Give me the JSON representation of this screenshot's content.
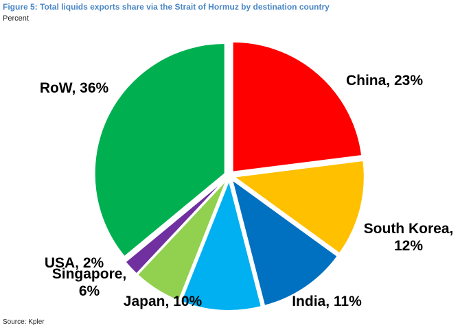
{
  "title": "Figure 5: Total liquids exports share via the Strait of Hormuz by destination country",
  "subtitle": "Percent",
  "source": "Source: Kpler",
  "chart_data": {
    "type": "pie",
    "start_angle_deg": 0,
    "direction": "clockwise",
    "slices": [
      {
        "label": "China",
        "value": 23,
        "display": [
          "China, 23%"
        ],
        "color": "#FF0000"
      },
      {
        "label": "South Korea",
        "value": 12,
        "display": [
          "South Korea,",
          "12%"
        ],
        "color": "#FFC000"
      },
      {
        "label": "India",
        "value": 11,
        "display": [
          "India, 11%"
        ],
        "color": "#0070C0"
      },
      {
        "label": "Japan",
        "value": 10,
        "display": [
          "Japan, 10%"
        ],
        "color": "#00B0F0"
      },
      {
        "label": "Singapore",
        "value": 6,
        "display": [
          "Singapore,",
          "6%"
        ],
        "color": "#92D050"
      },
      {
        "label": "USA",
        "value": 2,
        "display": [
          "USA, 2%"
        ],
        "color": "#7030A0"
      },
      {
        "label": "RoW",
        "value": 36,
        "display": [
          "RoW, 36%"
        ],
        "color": "#00B050"
      }
    ],
    "exploded": true,
    "legend": "none"
  }
}
